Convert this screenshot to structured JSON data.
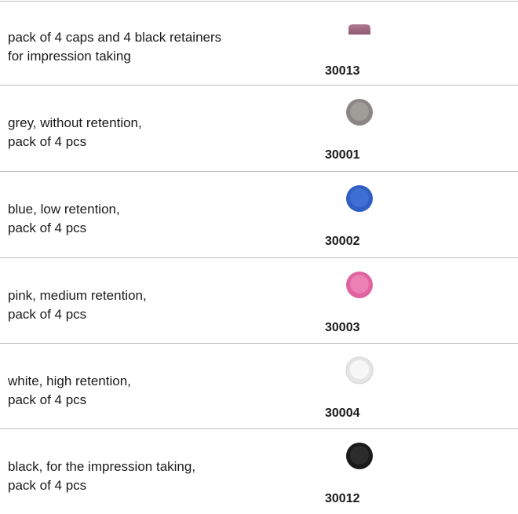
{
  "table": {
    "rows": [
      {
        "description": [
          "pack of 4 caps and 4 black retainers",
          "for impression taking"
        ],
        "code": "30013"
      },
      {
        "description": [
          "grey, without retention,",
          "pack of 4 pcs"
        ],
        "code": "30001"
      },
      {
        "description": [
          "blue, low retention,",
          "pack of 4 pcs"
        ],
        "code": "30002"
      },
      {
        "description": [
          "pink, medium retention,",
          "pack of 4 pcs"
        ],
        "code": "30003"
      },
      {
        "description": [
          "white, high retention,",
          "pack of 4 pcs"
        ],
        "code": "30004"
      },
      {
        "description": [
          "black, for the impression taking,",
          "pack of 4 pcs"
        ],
        "code": "30012"
      }
    ]
  }
}
